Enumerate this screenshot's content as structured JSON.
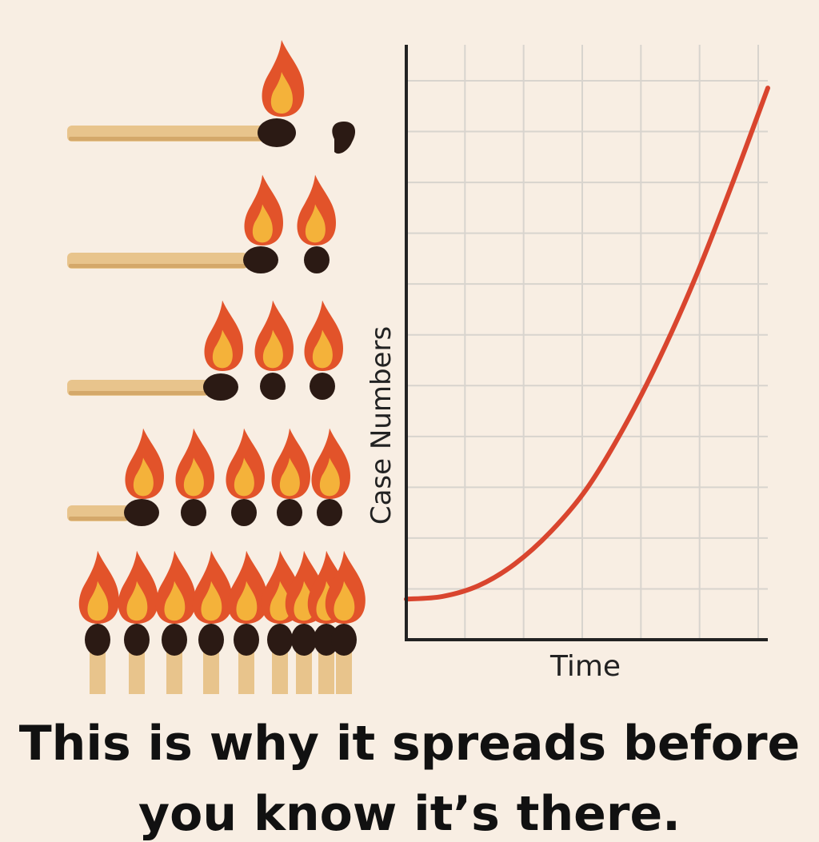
{
  "colors": {
    "background": "#f8eee3",
    "stick": "#e8c48c",
    "stick_shade": "#d4a86a",
    "match_head": "#2b1a14",
    "flame_outer": "#e2532a",
    "flame_inner": "#f4b23a",
    "curve": "#d9452e",
    "grid": "#d8d4ce",
    "axis": "#222222"
  },
  "illustration": {
    "rows": [
      {
        "burning": 1,
        "spent": 1
      },
      {
        "burning": 2,
        "spent": 0
      },
      {
        "burning": 3,
        "spent": 0
      },
      {
        "burning": 5,
        "spent": 0
      },
      {
        "burning": 9,
        "spent": 0
      }
    ]
  },
  "chart_data": {
    "type": "line",
    "title": "",
    "xlabel": "Time",
    "ylabel": "Case Numbers",
    "grid": true,
    "xlim": [
      0,
      10
    ],
    "ylim": [
      0,
      11
    ],
    "series": [
      {
        "values": [
          {
            "x": 0,
            "y": 0.75
          },
          {
            "x": 1,
            "y": 0.8
          },
          {
            "x": 2,
            "y": 1.0
          },
          {
            "x": 3,
            "y": 1.4
          },
          {
            "x": 4,
            "y": 2.0
          },
          {
            "x": 5,
            "y": 2.8
          },
          {
            "x": 6,
            "y": 3.9
          },
          {
            "x": 7,
            "y": 5.2
          },
          {
            "x": 8,
            "y": 6.7
          },
          {
            "x": 9,
            "y": 8.4
          },
          {
            "x": 10,
            "y": 10.2
          }
        ]
      }
    ]
  },
  "caption": {
    "line1": "This is why it spreads before",
    "line2": "you know it’s there."
  }
}
